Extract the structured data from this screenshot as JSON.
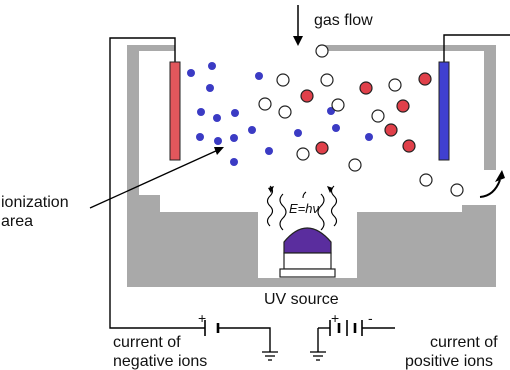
{
  "labels": {
    "gas_flow": "gas flow",
    "ionization_area_line1": "ionization",
    "ionization_area_line2": "area",
    "uv_source": "UV source",
    "photon_energy": "E=hν",
    "neg_current_line1": "current of",
    "neg_current_line2": "negative ions",
    "pos_current_line1": "current of",
    "pos_current_line2": "positive ions",
    "plus_left": "+",
    "plus_right": "+",
    "minus_right": "-"
  },
  "colors": {
    "chamber": "#a9a9a9",
    "negative_electrode": "#e2575c",
    "positive_electrode": "#4040d0",
    "negative_ion": "#3b3bc4",
    "positive_ion": "#e0404a",
    "neutral_molecule": "#ffffff",
    "lamp": "#5a2d9e",
    "wire": "#000000"
  }
}
